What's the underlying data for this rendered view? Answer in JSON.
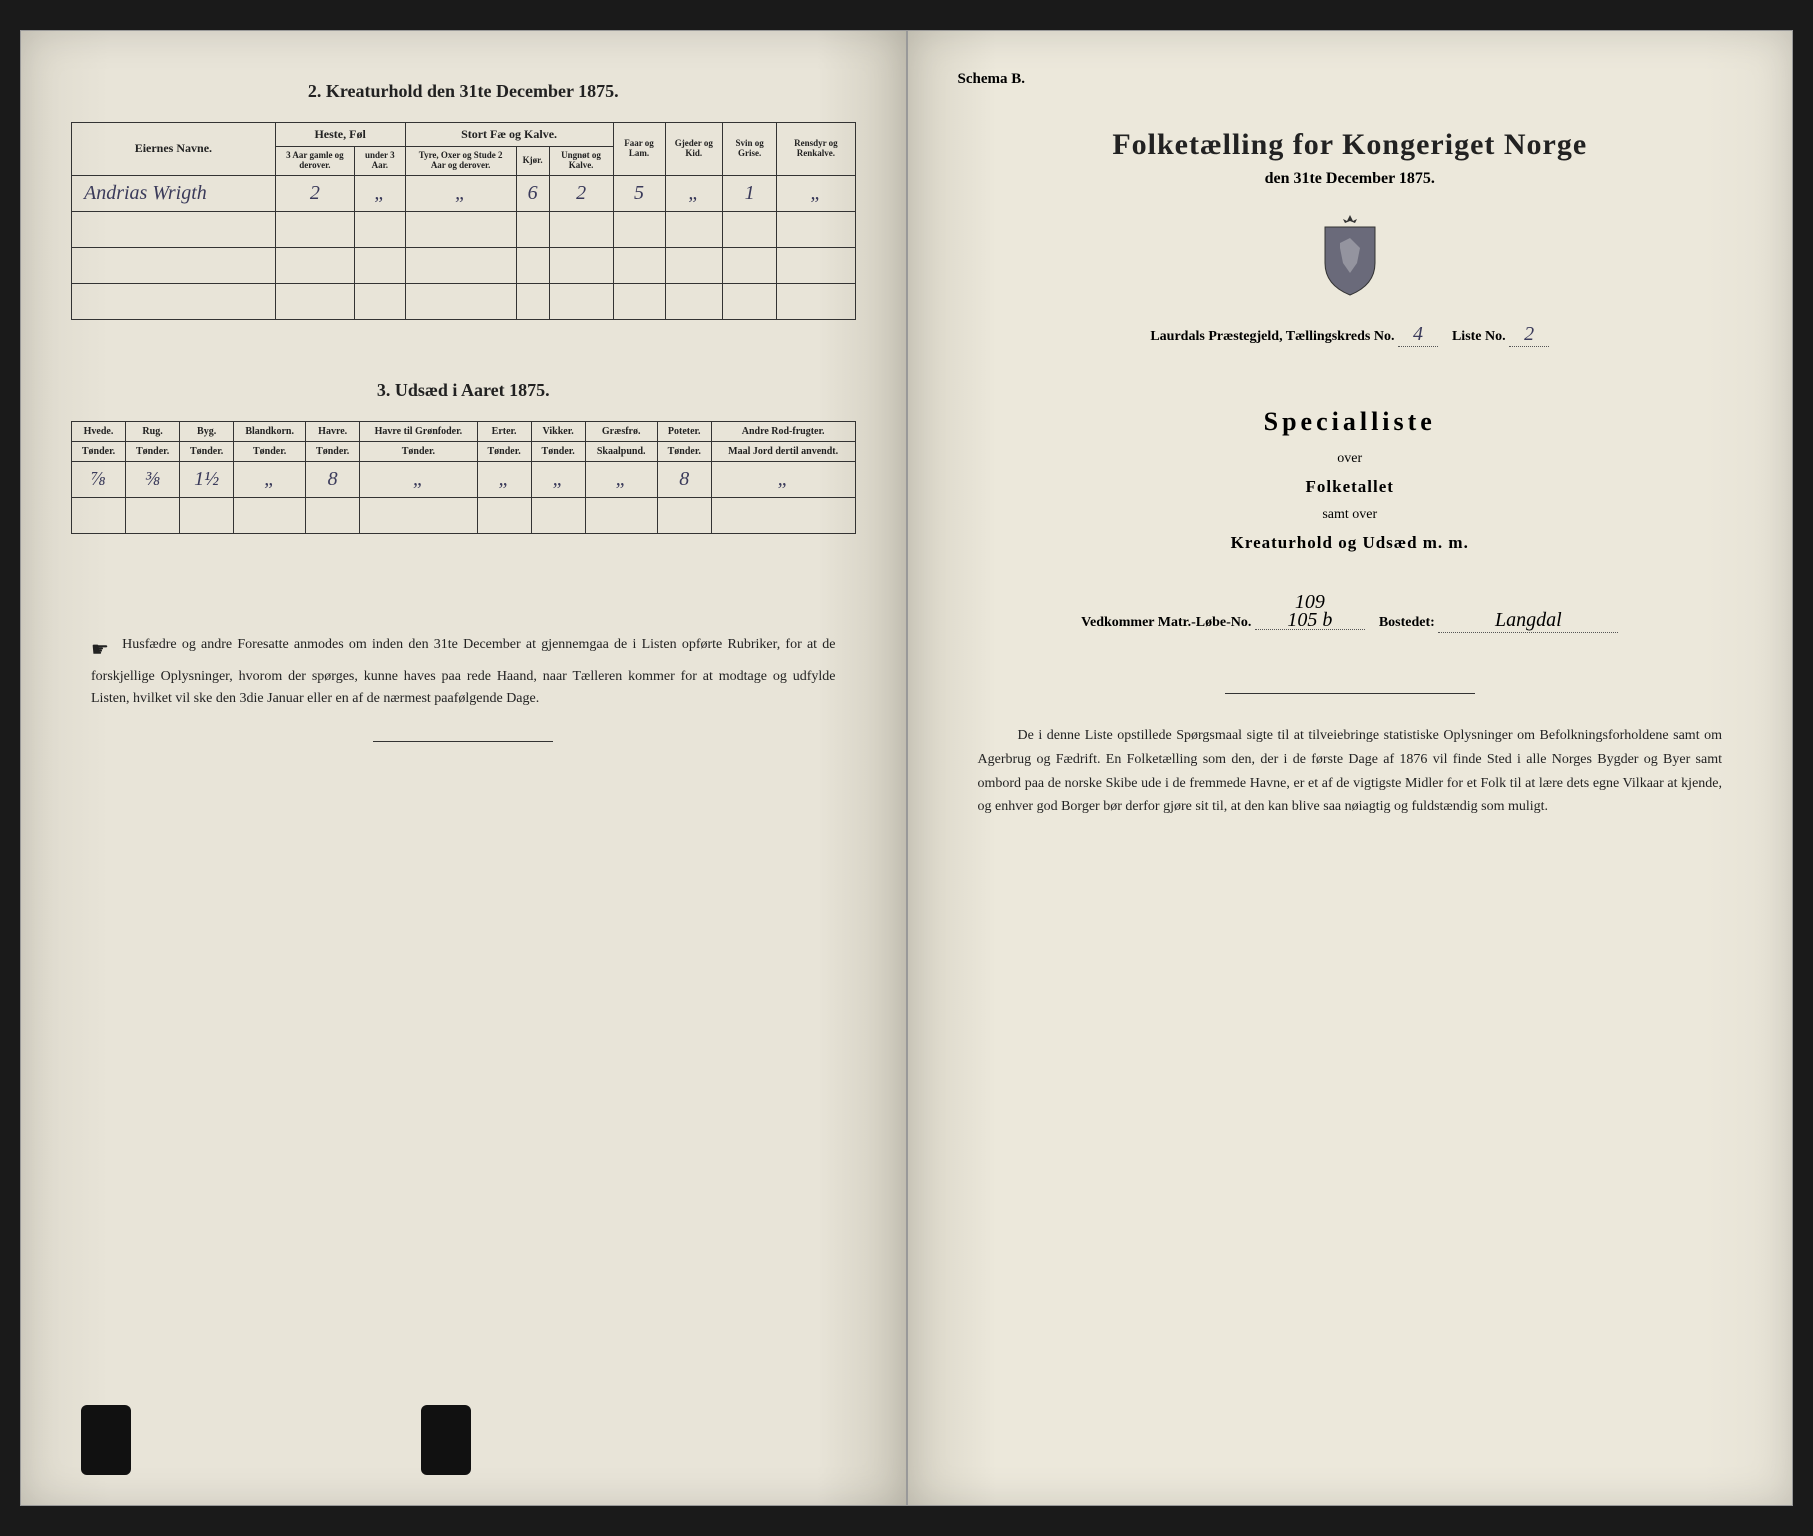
{
  "left": {
    "section2_title": "2. Kreaturhold den 31te December 1875.",
    "table2": {
      "col_owner": "Eiernes Navne.",
      "group_heste": "Heste, Føl",
      "group_stort": "Stort Fæ og Kalve.",
      "col_faar": "Faar og Lam.",
      "col_gjeder": "Gjeder og Kid.",
      "col_svin": "Svin og Grise.",
      "col_rensdyr": "Rensdyr og Renkalve.",
      "sub_heste1": "3 Aar gamle og derover.",
      "sub_heste2": "under 3 Aar.",
      "sub_stort1": "Tyre, Oxer og Stude 2 Aar og derover.",
      "sub_stort2": "Kjør.",
      "sub_stort3": "Ungnøt og Kalve.",
      "row1": {
        "owner": "Andrias Wrigth",
        "v1": "2",
        "v2": "„",
        "v3": "„",
        "v4": "6",
        "v5": "2",
        "v6": "5",
        "v7": "„",
        "v8": "1",
        "v9": "„"
      }
    },
    "section3_title": "3. Udsæd i Aaret 1875.",
    "table3": {
      "cols": [
        {
          "h": "Hvede.",
          "s": "Tønder."
        },
        {
          "h": "Rug.",
          "s": "Tønder."
        },
        {
          "h": "Byg.",
          "s": "Tønder."
        },
        {
          "h": "Blandkorn.",
          "s": "Tønder."
        },
        {
          "h": "Havre.",
          "s": "Tønder."
        },
        {
          "h": "Havre til Grønfoder.",
          "s": "Tønder."
        },
        {
          "h": "Erter.",
          "s": "Tønder."
        },
        {
          "h": "Vikker.",
          "s": "Tønder."
        },
        {
          "h": "Græsfrø.",
          "s": "Skaalpund."
        },
        {
          "h": "Poteter.",
          "s": "Tønder."
        },
        {
          "h": "Andre Rod-frugter.",
          "s": "Maal Jord dertil anvendt."
        }
      ],
      "row1": [
        "⅞",
        "⅜",
        "1½",
        "„",
        "8",
        "„",
        "„",
        "„",
        "„",
        "8",
        "„"
      ]
    },
    "footnote": "Husfædre og andre Foresatte anmodes om inden den 31te December at gjennemgaa de i Listen opførte Rubriker, for at de forskjellige Oplysninger, hvorom der spørges, kunne haves paa rede Haand, naar Tælleren kommer for at modtage og udfylde Listen, hvilket vil ske den 3die Januar eller en af de nærmest paafølgende Dage."
  },
  "right": {
    "schema": "Schema B.",
    "title": "Folketælling for Kongeriget Norge",
    "subtitle": "den 31te December 1875.",
    "meta": {
      "presteg_label": "Laurdals",
      "presteg_suffix": "Præstegjeld, Tællingskreds No.",
      "kreds_no": "4",
      "liste_label": "Liste No.",
      "liste_no": "2"
    },
    "special": {
      "h1": "Specialliste",
      "l1": "over",
      "l2": "Folketallet",
      "l3": "samt over",
      "l4": "Kreaturhold og Udsæd m. m."
    },
    "vedkom": {
      "label1": "Vedkommer Matr.-Løbe-No.",
      "val1": "109\n105 b",
      "label2": "Bostedet:",
      "val2": "Langdal"
    },
    "para": "De i denne Liste opstillede Spørgsmaal sigte til at tilveiebringe statistiske Oplysninger om Befolkningsforholdene samt om Agerbrug og Fædrift. En Folketælling som den, der i de første Dage af 1876 vil finde Sted i alle Norges Bygder og Byer samt ombord paa de norske Skibe ude i de fremmede Havne, er et af de vigtigste Midler for et Folk til at lære dets egne Vilkaar at kjende, og enhver god Borger bør derfor gjøre sit til, at den kan blive saa nøiagtig og fuldstændig som muligt."
  }
}
